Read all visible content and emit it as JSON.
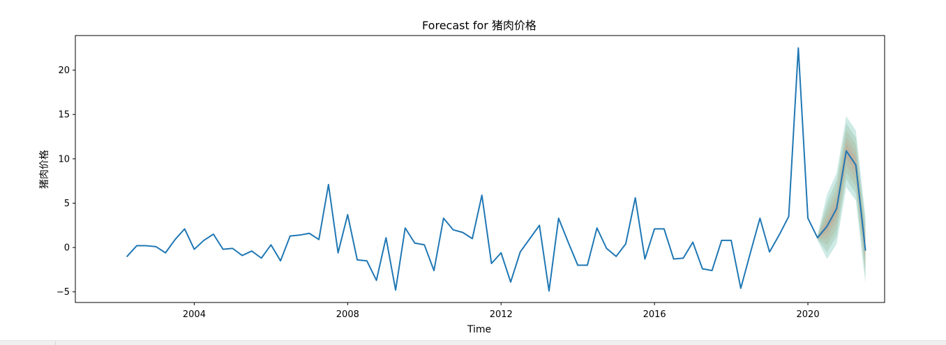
{
  "chart_data": {
    "type": "line",
    "title": "Forecast for 猪肉价格",
    "xlabel": "Time",
    "ylabel": "猪肉价格",
    "xlim": [
      2000.9,
      2022.0
    ],
    "ylim": [
      -6.2,
      23.9
    ],
    "x_ticks": [
      2004,
      2008,
      2012,
      2016,
      2020
    ],
    "y_ticks": [
      -5,
      0,
      5,
      10,
      15,
      20
    ],
    "grid": false,
    "series": [
      {
        "color": "#1f77b4",
        "x": [
          2002.25,
          2002.5,
          2002.75,
          2003.0,
          2003.25,
          2003.5,
          2003.75,
          2004.0,
          2004.25,
          2004.5,
          2004.75,
          2005.0,
          2005.25,
          2005.5,
          2005.75,
          2006.0,
          2006.25,
          2006.5,
          2006.75,
          2007.0,
          2007.25,
          2007.5,
          2007.75,
          2008.0,
          2008.25,
          2008.5,
          2008.75,
          2009.0,
          2009.25,
          2009.5,
          2009.75,
          2010.0,
          2010.25,
          2010.5,
          2010.75,
          2011.0,
          2011.25,
          2011.5,
          2011.75,
          2012.0,
          2012.25,
          2012.5,
          2012.75,
          2013.0,
          2013.25,
          2013.5,
          2013.75,
          2014.0,
          2014.25,
          2014.5,
          2014.75,
          2015.0,
          2015.25,
          2015.5,
          2015.75,
          2016.0,
          2016.25,
          2016.5,
          2016.75,
          2017.0,
          2017.25,
          2017.5,
          2017.75,
          2018.0,
          2018.25,
          2018.5,
          2018.75,
          2019.0,
          2019.25,
          2019.5,
          2019.75,
          2020.0,
          2020.25,
          2020.5,
          2020.75,
          2021.0,
          2021.25,
          2021.5
        ],
        "values": [
          -1.0,
          0.2,
          0.2,
          0.1,
          -0.6,
          0.9,
          2.1,
          -0.2,
          0.8,
          1.5,
          -0.2,
          -0.1,
          -0.9,
          -0.4,
          -1.2,
          0.3,
          -1.5,
          1.3,
          1.4,
          1.6,
          0.9,
          7.1,
          -0.6,
          3.7,
          -1.4,
          -1.5,
          -3.7,
          1.1,
          -4.8,
          2.2,
          0.5,
          0.3,
          -2.6,
          3.3,
          2.0,
          1.7,
          1.0,
          5.9,
          -1.8,
          -0.6,
          -3.9,
          -0.5,
          1.0,
          2.5,
          -4.9,
          3.3,
          0.6,
          -2.0,
          -2.0,
          2.2,
          -0.1,
          -1.0,
          0.4,
          5.6,
          -1.3,
          2.1,
          2.1,
          -1.3,
          -1.2,
          0.6,
          -2.4,
          -2.6,
          0.8,
          0.8,
          -4.6,
          -0.6,
          3.3,
          -0.5,
          1.4,
          3.5,
          22.5,
          3.3,
          1.1,
          2.4,
          4.4,
          10.9,
          9.3,
          -0.3
        ]
      }
    ],
    "forecast_band": {
      "x": [
        2020.25,
        2020.5,
        2020.75,
        2021.0,
        2021.25,
        2021.5
      ],
      "median": [
        1.1,
        2.4,
        4.4,
        10.9,
        9.3,
        -0.3
      ],
      "bands": [
        {
          "color": "#1f9e89",
          "lower": [
            0.8,
            -1.3,
            0.4,
            6.8,
            5.3,
            -4.1
          ],
          "upper": [
            1.4,
            6.0,
            8.4,
            14.8,
            13.2,
            3.5
          ]
        },
        {
          "color": "#6c9f77",
          "lower": [
            0.9,
            -0.5,
            1.3,
            7.7,
            6.1,
            -3.3
          ],
          "upper": [
            1.3,
            5.1,
            7.6,
            14.0,
            12.4,
            2.7
          ]
        },
        {
          "color": "#a2a67d",
          "lower": [
            0.95,
            0.3,
            2.1,
            8.5,
            6.9,
            -2.5
          ],
          "upper": [
            1.25,
            4.4,
            6.7,
            13.2,
            11.6,
            1.9
          ]
        },
        {
          "color": "#c49a7e",
          "lower": [
            1.0,
            1.0,
            2.9,
            9.3,
            7.7,
            -1.8
          ],
          "upper": [
            1.2,
            3.7,
            5.9,
            12.4,
            10.8,
            1.2
          ]
        },
        {
          "color": "#d2857c",
          "lower": [
            1.05,
            1.7,
            3.6,
            10.1,
            8.5,
            -1.0
          ],
          "upper": [
            1.15,
            3.0,
            5.2,
            11.7,
            10.1,
            0.4
          ]
        }
      ]
    }
  }
}
